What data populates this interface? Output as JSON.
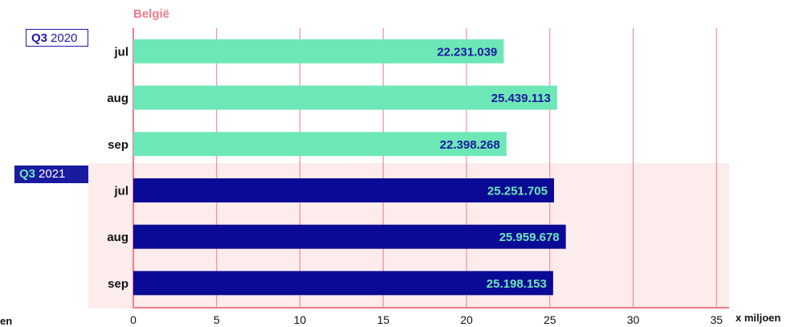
{
  "chart_data": {
    "type": "bar",
    "orientation": "horizontal",
    "title": "België",
    "categories": [
      "jul",
      "aug",
      "sep",
      "jul",
      "aug",
      "sep"
    ],
    "groups": [
      {
        "label_bold": "Q3",
        "label_year": "2020",
        "color": "#6ee7b7",
        "value_label_color": "#1a1aa0",
        "categories": [
          "jul",
          "aug",
          "sep"
        ],
        "values": [
          22.231039,
          25.439113,
          22.398268
        ],
        "value_labels": [
          "22.231.039",
          "25.439.113",
          "22.398.268"
        ]
      },
      {
        "label_bold": "Q3",
        "label_year": "2021",
        "color": "#0a0a96",
        "value_label_color": "#6ee7b7",
        "categories": [
          "jul",
          "aug",
          "sep"
        ],
        "values": [
          25.251705,
          25.959678,
          25.198153
        ],
        "value_labels": [
          "25.251.705",
          "25.959.678",
          "25.198.153"
        ]
      }
    ],
    "xlim": [
      0,
      35
    ],
    "x_ticks": [
      0,
      5,
      10,
      15,
      20,
      25,
      30,
      35
    ],
    "x_unit": "x miljoen",
    "left_unit_fragment": "en",
    "grid": true,
    "colors": {
      "grid": "#f07c8c",
      "title": "#f07c8c",
      "highlight_band": "#fdecec"
    }
  }
}
